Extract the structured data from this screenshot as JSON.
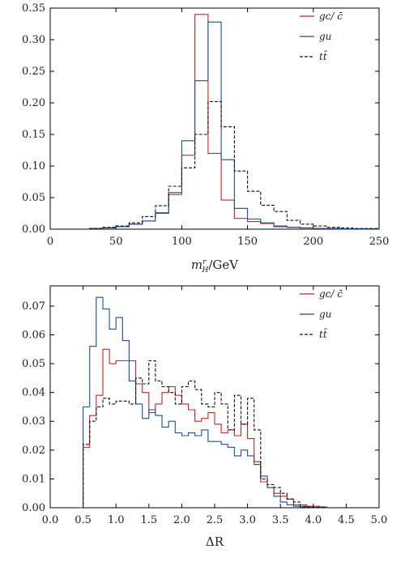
{
  "chart_data": [
    {
      "type": "line",
      "xlabel": "m_H^r/GeV",
      "xlabel_parts": {
        "main": "m",
        "sup": "r",
        "sub": "H",
        "unit": "/GeV"
      },
      "xlim": [
        0,
        250
      ],
      "ylim": [
        0,
        0.35
      ],
      "xticks": [
        0,
        50,
        100,
        150,
        200,
        250
      ],
      "xtick_labels": [
        "0",
        "50",
        "100",
        "150",
        "200",
        "250"
      ],
      "yticks": [
        0,
        0.05,
        0.1,
        0.15,
        0.2,
        0.25,
        0.3,
        0.35
      ],
      "ytick_labels": [
        "0.00",
        "0.05",
        "0.10",
        "0.15",
        "0.20",
        "0.25",
        "0.30",
        "0.35"
      ],
      "legend_position": "top-right",
      "bin_edges": [
        30,
        40,
        50,
        60,
        70,
        80,
        90,
        100,
        110,
        120,
        130,
        140,
        150,
        160,
        170,
        180,
        190,
        200,
        210,
        220,
        230,
        240,
        250
      ],
      "series": [
        {
          "name": "gc/ c̄",
          "color": "#cc2222",
          "dash": "solid",
          "values": [
            0.001,
            0.002,
            0.004,
            0.008,
            0.013,
            0.025,
            0.055,
            0.117,
            0.34,
            0.12,
            0.046,
            0.017,
            0.012,
            0.009,
            0.004,
            0.003,
            0.002,
            0.001,
            0.001,
            0.0005,
            0.0005,
            0.0005
          ]
        },
        {
          "name": "gu",
          "color": "#1f4e8c",
          "dash": "solid",
          "values": [
            0.001,
            0.002,
            0.004,
            0.008,
            0.013,
            0.026,
            0.058,
            0.14,
            0.235,
            0.328,
            0.11,
            0.033,
            0.016,
            0.01,
            0.005,
            0.003,
            0.002,
            0.001,
            0.001,
            0.0005,
            0.0005,
            0.0005
          ]
        },
        {
          "name": "tt̄",
          "color": "#111111",
          "dash": "dashed",
          "values": [
            0.001,
            0.003,
            0.005,
            0.01,
            0.02,
            0.037,
            0.068,
            0.097,
            0.15,
            0.202,
            0.162,
            0.092,
            0.06,
            0.038,
            0.028,
            0.014,
            0.008,
            0.005,
            0.003,
            0.002,
            0.001,
            0.001
          ]
        }
      ]
    },
    {
      "type": "line",
      "xlabel": "ΔR",
      "xlim": [
        0,
        5
      ],
      "ylim": [
        0,
        0.077
      ],
      "xticks": [
        0,
        0.5,
        1.0,
        1.5,
        2.0,
        2.5,
        3.0,
        3.5,
        4.0,
        4.5,
        5.0
      ],
      "xtick_labels": [
        "0.0",
        "0.5",
        "1.0",
        "1.5",
        "2.0",
        "2.5",
        "3.0",
        "3.5",
        "4.0",
        "4.5",
        "5.0"
      ],
      "yticks": [
        0,
        0.01,
        0.02,
        0.03,
        0.04,
        0.05,
        0.06,
        0.07
      ],
      "ytick_labels": [
        "0.00",
        "0.01",
        "0.02",
        "0.03",
        "0.04",
        "0.05",
        "0.06",
        "0.07"
      ],
      "legend_position": "top-right",
      "bin_start": 0.4,
      "bin_width": 0.1,
      "series": [
        {
          "name": "gc/ c̄",
          "color": "#cc2222",
          "dash": "solid",
          "values": [
            0,
            0.021,
            0.032,
            0.039,
            0.055,
            0.05,
            0.051,
            0.051,
            0.051,
            0.043,
            0.04,
            0.033,
            0.036,
            0.04,
            0.042,
            0.039,
            0.036,
            0.034,
            0.03,
            0.031,
            0.033,
            0.029,
            0.026,
            0.027,
            0.025,
            0.029,
            0.024,
            0.016,
            0.009,
            0.007,
            0.005,
            0.004,
            0.003,
            0.001,
            0.001,
            0.0005,
            0.0005,
            0.0003
          ]
        },
        {
          "name": "gu",
          "color": "#1f4e8c",
          "dash": "solid",
          "values": [
            0,
            0.035,
            0.056,
            0.073,
            0.069,
            0.062,
            0.066,
            0.058,
            0.044,
            0.036,
            0.031,
            0.034,
            0.032,
            0.028,
            0.03,
            0.026,
            0.025,
            0.026,
            0.025,
            0.027,
            0.023,
            0.023,
            0.022,
            0.021,
            0.018,
            0.02,
            0.018,
            0.015,
            0.011,
            0.007,
            0.004,
            0.002,
            0.001,
            0.0005,
            0.0003,
            0.0002,
            0.0001,
            0.0001
          ]
        },
        {
          "name": "tt̄",
          "color": "#111111",
          "dash": "dashed",
          "values": [
            0,
            0.022,
            0.03,
            0.035,
            0.038,
            0.036,
            0.037,
            0.037,
            0.036,
            0.045,
            0.043,
            0.051,
            0.044,
            0.042,
            0.04,
            0.036,
            0.042,
            0.044,
            0.041,
            0.036,
            0.035,
            0.04,
            0.036,
            0.027,
            0.039,
            0.029,
            0.038,
            0.027,
            0.01,
            0.008,
            0.007,
            0.005,
            0.003,
            0.002,
            0.0005,
            0.0003,
            0.0002,
            0.0002
          ]
        }
      ]
    }
  ]
}
